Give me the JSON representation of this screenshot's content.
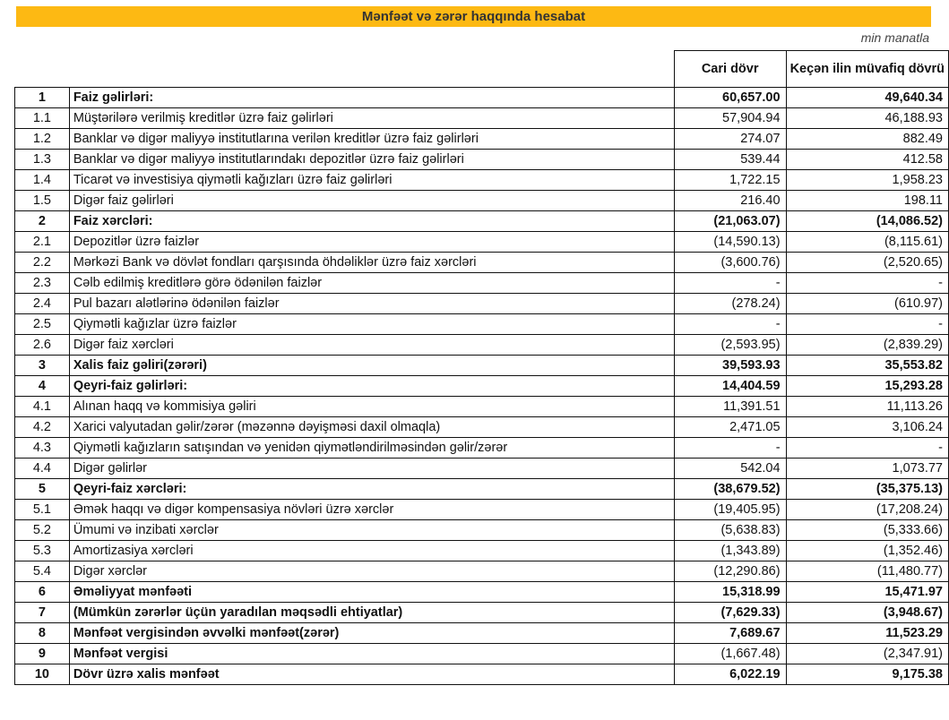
{
  "title": "Mənfəət və zərər haqqında hesabat",
  "unit": "min manatla",
  "columns": {
    "current": "Cari dövr",
    "previous": "Keçən ilin müvafiq dövrü"
  },
  "accent_color": "#FDB913",
  "rows": [
    {
      "no": "1",
      "label": "Faiz gəlirləri:",
      "current": "60,657.00",
      "previous": "49,640.34",
      "bold": true
    },
    {
      "no": "1.1",
      "label": "Müştərilərə verilmiş kreditlər üzrə faiz gəlirləri",
      "current": "57,904.94",
      "previous": "46,188.93"
    },
    {
      "no": "1.2",
      "label": "Banklar və digər maliyyə institutlarına verilən kreditlər üzrə faiz gəlirləri",
      "current": "274.07",
      "previous": "882.49"
    },
    {
      "no": "1.3",
      "label": "Banklar və digər maliyyə institutlarındakı depozitlər üzrə faiz gəlirləri",
      "current": "539.44",
      "previous": "412.58"
    },
    {
      "no": "1.4",
      "label": "Ticarət və investisiya qiymətli kağızları üzrə faiz gəlirləri",
      "current": "1,722.15",
      "previous": "1,958.23"
    },
    {
      "no": "1.5",
      "label": "Digər faiz gəlirləri",
      "current": "216.40",
      "previous": "198.11"
    },
    {
      "no": "2",
      "label": "Faiz xərcləri:",
      "current": "(21,063.07)",
      "previous": "(14,086.52)",
      "bold": true
    },
    {
      "no": "2.1",
      "label": "Depozitlər üzrə faizlər",
      "current": "(14,590.13)",
      "previous": "(8,115.61)"
    },
    {
      "no": "2.2",
      "label": "Mərkəzi Bank və dövlət fondları qarşısında öhdəliklər üzrə faiz xərcləri",
      "current": "(3,600.76)",
      "previous": "(2,520.65)"
    },
    {
      "no": "2.3",
      "label": "Cəlb edilmiş kreditlərə görə ödənilən faizlər",
      "current": "-",
      "previous": "-"
    },
    {
      "no": "2.4",
      "label": "Pul bazarı alətlərinə ödənilən faizlər",
      "current": "(278.24)",
      "previous": "(610.97)"
    },
    {
      "no": "2.5",
      "label": "Qiymətli kağızlar üzrə faizlər",
      "current": "-",
      "previous": "-"
    },
    {
      "no": "2.6",
      "label": "Digər faiz xərcləri",
      "current": "(2,593.95)",
      "previous": "(2,839.29)"
    },
    {
      "no": "3",
      "label": "Xalis faiz gəliri(zərəri)",
      "current": "39,593.93",
      "previous": "35,553.82",
      "bold": true
    },
    {
      "no": "4",
      "label": "Qeyri-faiz gəlirləri:",
      "current": "14,404.59",
      "previous": "15,293.28",
      "bold": true
    },
    {
      "no": "4.1",
      "label": "Alınan haqq və kommisiya gəliri",
      "current": "11,391.51",
      "previous": "11,113.26"
    },
    {
      "no": "4.2",
      "label": "Xarici valyutadan gəlir/zərər (məzənnə dəyişməsi daxil olmaqla)",
      "current": "2,471.05",
      "previous": "3,106.24"
    },
    {
      "no": "4.3",
      "label": "Qiymətli kağızların satışından və yenidən qiymətləndirilməsindən gəlir/zərər",
      "current": "-",
      "previous": "-"
    },
    {
      "no": "4.4",
      "label": "Digər gəlirlər",
      "current": "542.04",
      "previous": "1,073.77"
    },
    {
      "no": "5",
      "label": "Qeyri-faiz xərcləri:",
      "current": "(38,679.52)",
      "previous": "(35,375.13)",
      "bold": true
    },
    {
      "no": "5.1",
      "label": "Əmək haqqı və digər kompensasiya növləri üzrə xərclər",
      "current": "(19,405.95)",
      "previous": "(17,208.24)"
    },
    {
      "no": "5.2",
      "label": "Ümumi və inzibati xərclər",
      "current": "(5,638.83)",
      "previous": "(5,333.66)"
    },
    {
      "no": "5.3",
      "label": "Amortizasiya xərcləri",
      "current": "(1,343.89)",
      "previous": "(1,352.46)"
    },
    {
      "no": "5.4",
      "label": "Digər xərclər",
      "current": "(12,290.86)",
      "previous": "(11,480.77)"
    },
    {
      "no": "6",
      "label": "Əməliyyat mənfəəti",
      "current": "15,318.99",
      "previous": "15,471.97",
      "bold": true
    },
    {
      "no": "7",
      "label": "(Mümkün zərərlər üçün yaradılan məqsədli ehtiyatlar)",
      "current": "(7,629.33)",
      "previous": "(3,948.67)",
      "bold": true
    },
    {
      "no": "8",
      "label": "Mənfəət vergisindən əvvəlki mənfəət(zərər)",
      "current": "7,689.67",
      "previous": "11,523.29",
      "bold": true
    },
    {
      "no": "9",
      "label": "Mənfəət vergisi",
      "current": "(1,667.48)",
      "previous": "(2,347.91)",
      "bold": true,
      "plainValues": true
    },
    {
      "no": "10",
      "label": "Dövr üzrə xalis mənfəət",
      "current": "6,022.19",
      "previous": "9,175.38",
      "bold": true
    }
  ]
}
